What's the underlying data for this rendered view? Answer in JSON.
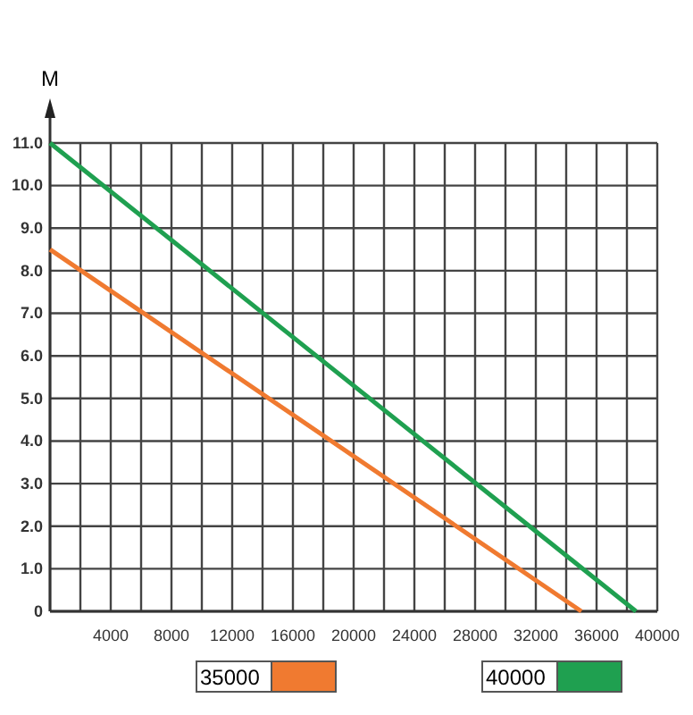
{
  "chart_data": {
    "type": "line",
    "ylabel": "M",
    "xlim": [
      0,
      40000
    ],
    "xticks": [
      {
        "value": 0,
        "label": null
      },
      {
        "value": 2000,
        "label": null
      },
      4000,
      {
        "value": 6000,
        "label": null
      },
      8000,
      {
        "value": 10000,
        "label": null
      },
      12000,
      {
        "value": 14000,
        "label": null
      },
      16000,
      {
        "value": 18000,
        "label": null
      },
      20000,
      {
        "value": 22000,
        "label": null
      },
      24000,
      {
        "value": 26000,
        "label": null
      },
      28000,
      {
        "value": 30000,
        "label": null
      },
      32000,
      {
        "value": 34000,
        "label": null
      },
      36000,
      {
        "value": 38000,
        "label": null
      },
      40000
    ],
    "ylim": [
      0,
      11
    ],
    "yticks": [
      0,
      {
        "value": 1,
        "label": "1.0"
      },
      {
        "value": 2,
        "label": "2.0"
      },
      {
        "value": 3,
        "label": "3.0"
      },
      {
        "value": 4,
        "label": "4.0"
      },
      {
        "value": 5,
        "label": "5.0"
      },
      {
        "value": 6,
        "label": "6.0"
      },
      {
        "value": 7,
        "label": "7.0"
      },
      {
        "value": 8,
        "label": "8.0"
      },
      {
        "value": 9,
        "label": "9.0"
      },
      {
        "value": 10,
        "label": "10.0"
      },
      {
        "value": 11,
        "label": "11.0"
      }
    ],
    "grid": true,
    "legend": "bottom",
    "marker": "none",
    "line_style": "solid",
    "series": [
      {
        "name": "35000",
        "color": "#f07a30",
        "x": [
          0,
          35000
        ],
        "values": [
          8.5,
          0
        ]
      },
      {
        "name": "40000",
        "color": "#1fa050",
        "x": [
          0,
          38600
        ],
        "values": [
          11,
          0
        ]
      }
    ]
  }
}
